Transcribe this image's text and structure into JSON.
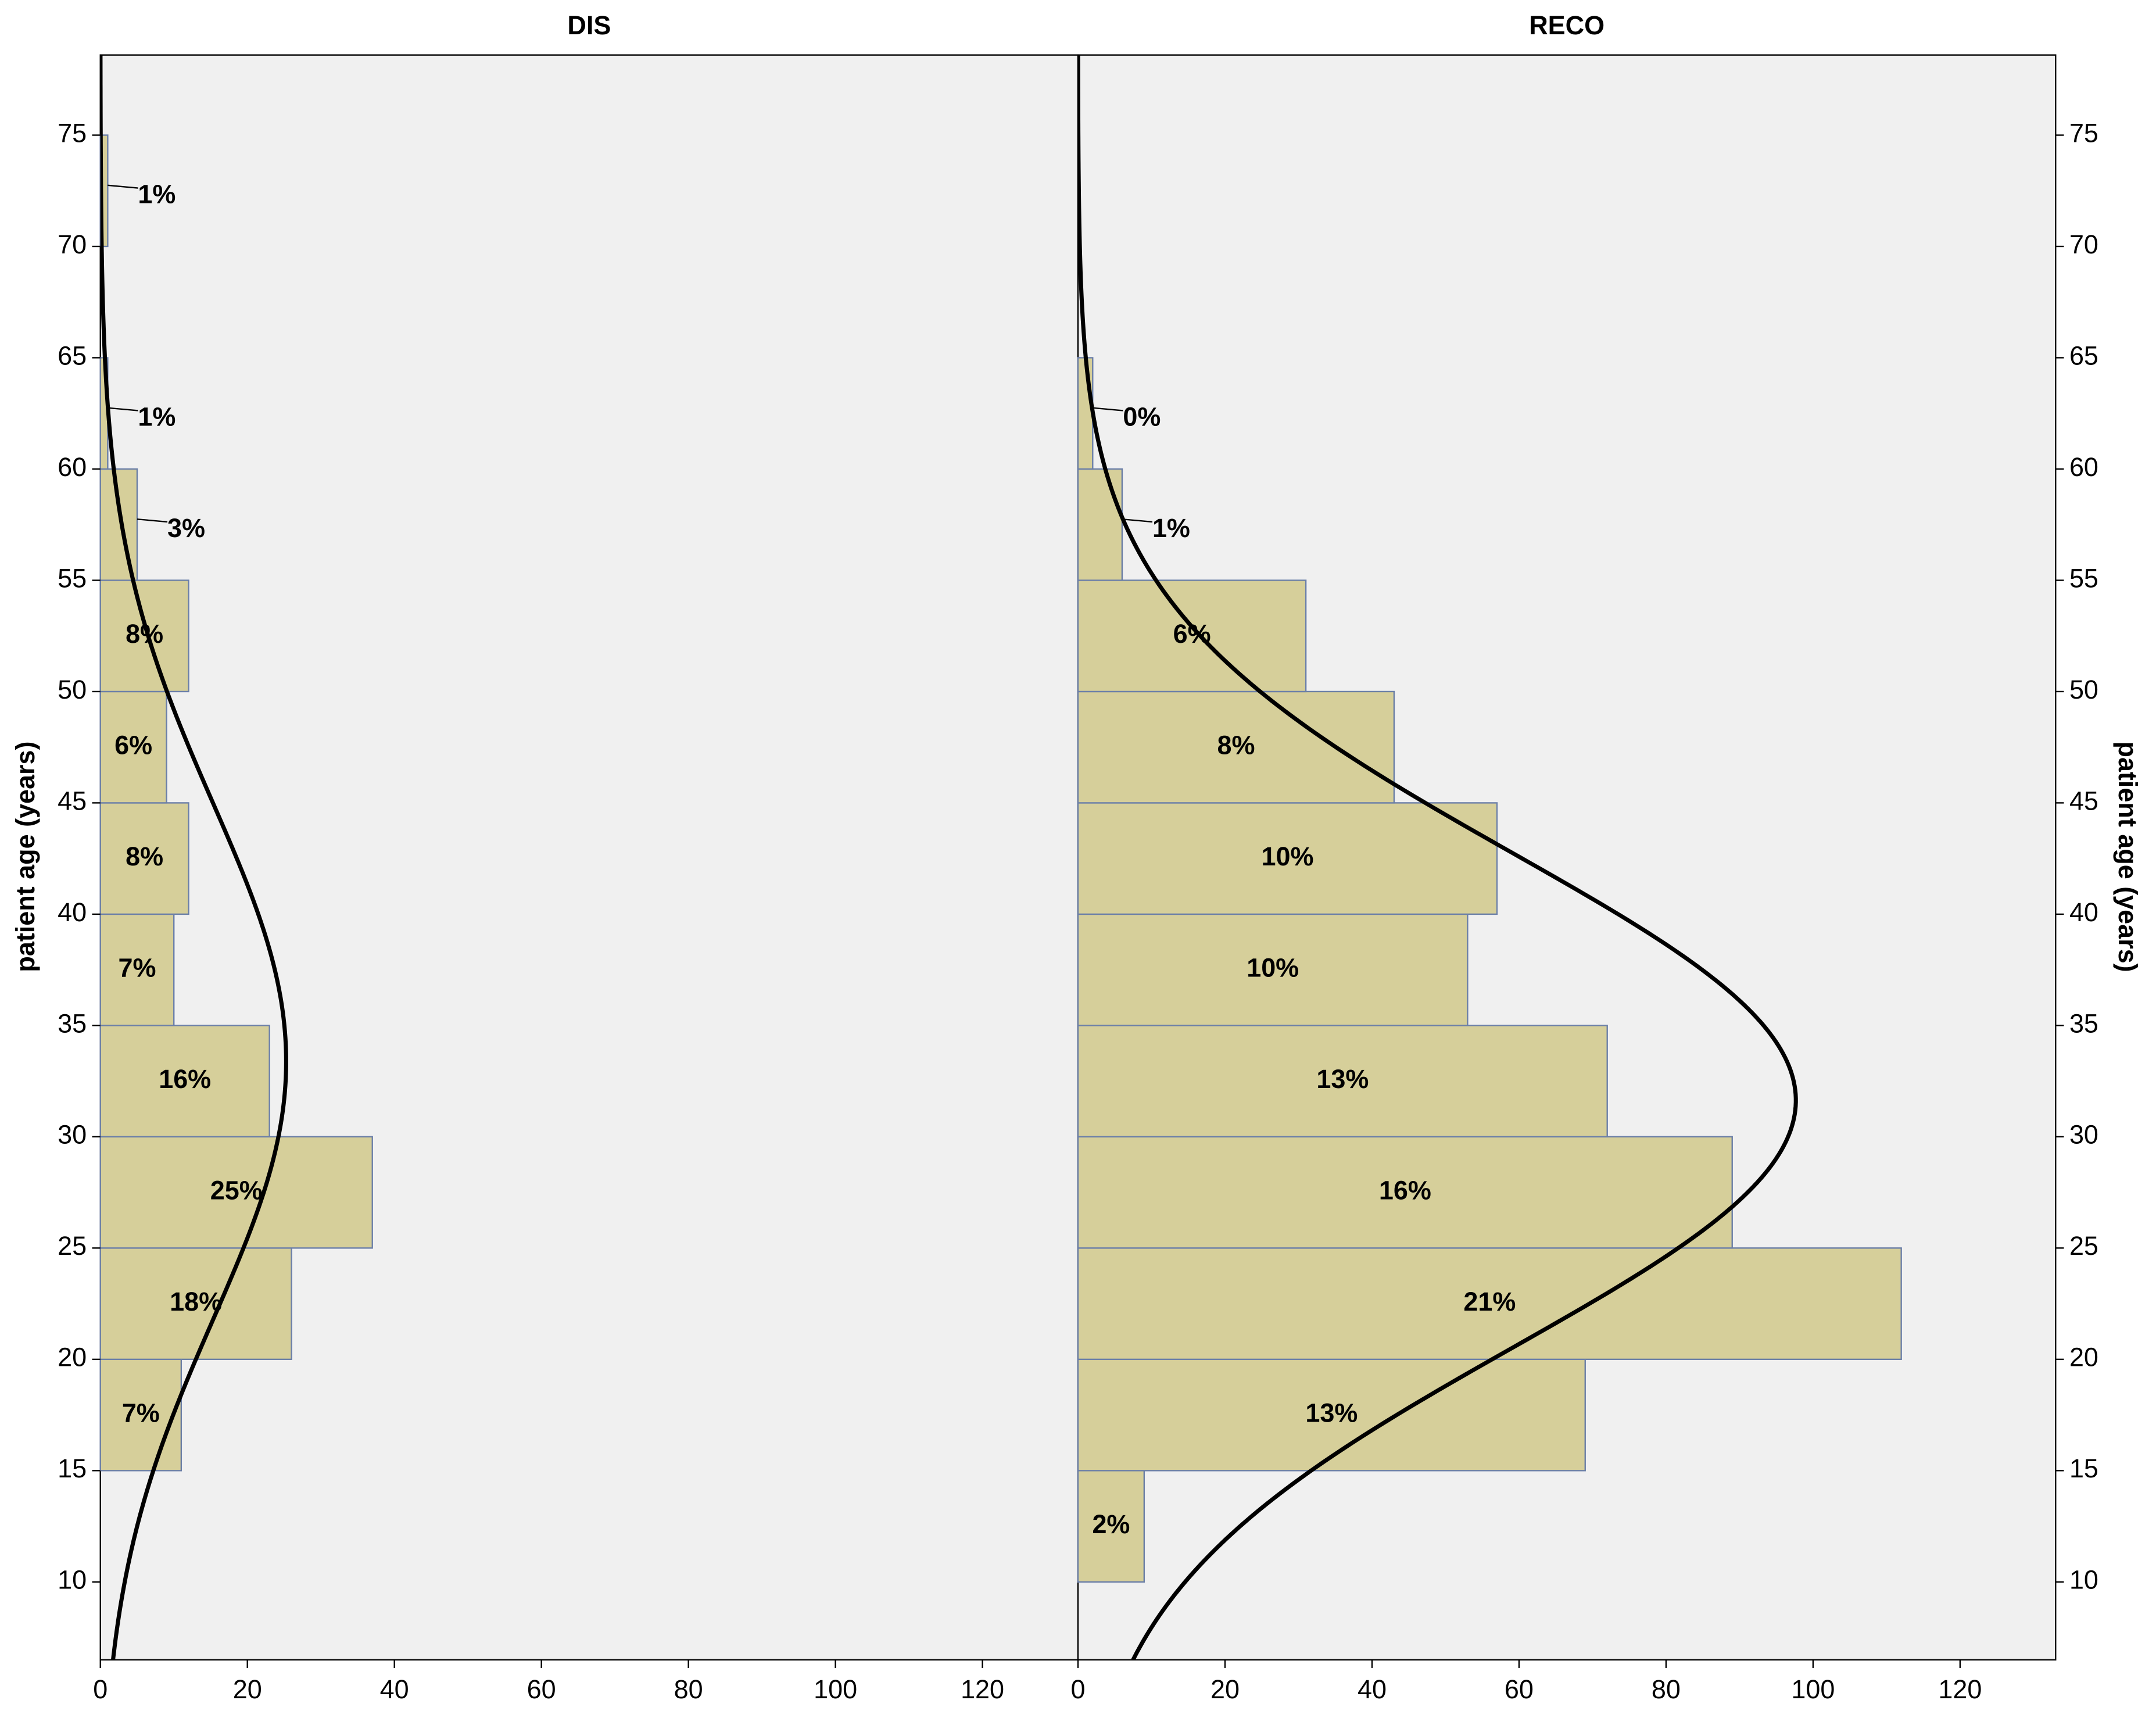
{
  "chart_data": {
    "type": "histogram",
    "orientation": "horizontal",
    "ylabel": "patient age (years)",
    "bins": [
      10,
      15,
      20,
      25,
      30,
      35,
      40,
      45,
      50,
      55,
      60,
      65,
      70,
      75
    ],
    "ylim": [
      6.5,
      78.6
    ],
    "yticks": [
      10,
      15,
      20,
      25,
      30,
      35,
      40,
      45,
      50,
      55,
      60,
      65,
      70,
      75
    ],
    "xlim": [
      0,
      133
    ],
    "xticks": [
      0,
      20,
      40,
      60,
      80,
      100,
      120
    ],
    "color": "#d6cf9a",
    "edge_color": "#6b7fa8",
    "background": "#f0f0f0",
    "normal_curve": true,
    "panels": [
      {
        "title": "DIS",
        "values": [
          0,
          11,
          26,
          37,
          23,
          10,
          12,
          9,
          12,
          5,
          1,
          0,
          1
        ],
        "percent_labels": [
          null,
          "7%",
          "18%",
          "25%",
          "16%",
          "7%",
          "8%",
          "6%",
          "8%",
          "3%",
          "1%",
          null,
          "1%"
        ]
      },
      {
        "title": "RECO",
        "values": [
          9,
          69,
          112,
          89,
          72,
          53,
          57,
          43,
          31,
          6,
          2,
          0,
          0
        ],
        "percent_labels": [
          "2%",
          "13%",
          "21%",
          "16%",
          "13%",
          "10%",
          "10%",
          "8%",
          "6%",
          "1%",
          "0%",
          null,
          null
        ]
      }
    ]
  }
}
